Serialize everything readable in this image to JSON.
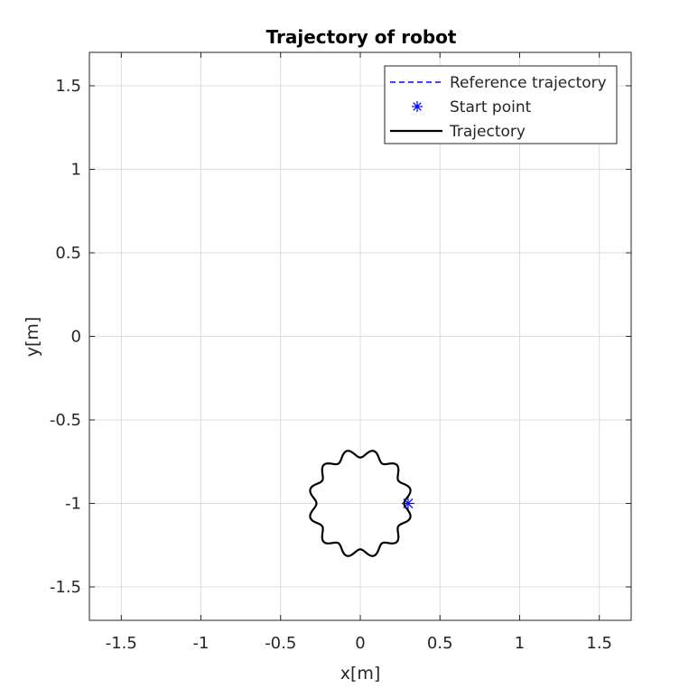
{
  "chart_data": {
    "type": "line",
    "title": "Trajectory of robot",
    "xlabel": "x[m]",
    "ylabel": "y[m]",
    "xlim": [
      -1.7,
      1.7
    ],
    "ylim": [
      -1.7,
      1.7
    ],
    "xticks": [
      -1.5,
      -1,
      -0.5,
      0,
      0.5,
      1,
      1.5
    ],
    "xtick_labels": [
      "-1.5",
      "-1",
      "-0.5",
      "0",
      "0.5",
      "1",
      "1.5"
    ],
    "yticks": [
      -1.5,
      -1,
      -0.5,
      0,
      0.5,
      1,
      1.5
    ],
    "ytick_labels": [
      "-1.5",
      "-1",
      "-0.5",
      "0",
      "0.5",
      "1",
      "1.5"
    ],
    "grid": true,
    "legend_position": "top-right",
    "series": [
      {
        "name": "Reference trajectory",
        "style": "dashed",
        "color": "#0000ff",
        "shape": "flower",
        "center": [
          0,
          -1
        ],
        "base_radius": 0.3,
        "petal_amplitude": 0.025,
        "petals": 12
      },
      {
        "name": "Start point",
        "style": "marker",
        "marker": "asterisk",
        "color": "#0000ff",
        "point": [
          0.3,
          -1.0
        ]
      },
      {
        "name": "Trajectory",
        "style": "solid",
        "color": "#000000",
        "shape": "flower",
        "center": [
          0,
          -1
        ],
        "base_radius": 0.3,
        "petal_amplitude": 0.025,
        "petals": 12
      }
    ]
  }
}
